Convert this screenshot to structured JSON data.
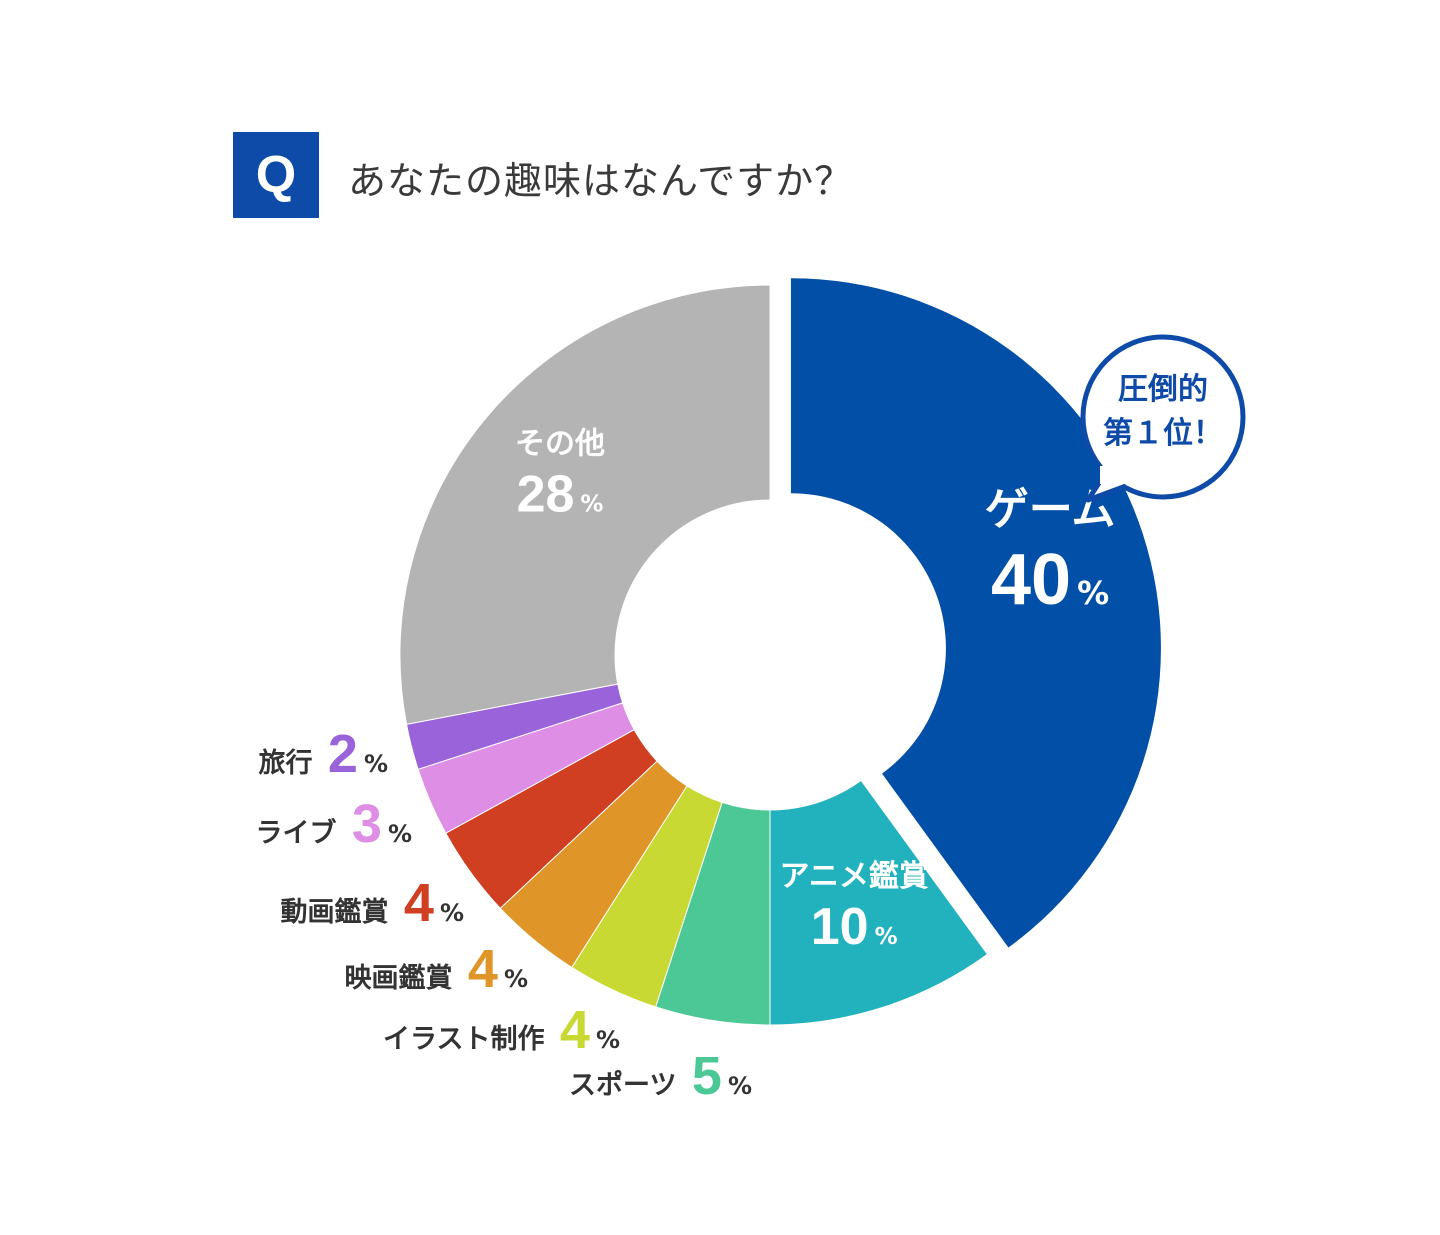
{
  "question": {
    "badge": "Q",
    "text": "あなたの趣味はなんですか？"
  },
  "callout": {
    "line1": "圧倒的",
    "line2": "第１位！",
    "color": "#0e4aa8"
  },
  "chart_data": {
    "type": "pie",
    "donut": true,
    "unit": "%",
    "slices": [
      {
        "label": "ゲーム",
        "value": 40,
        "color": "#024fa8",
        "label_color": "#ffffff",
        "label_position": "inside",
        "exploded": true
      },
      {
        "label": "アニメ鑑賞",
        "value": 10,
        "color": "#22b2bd",
        "label_color": "#ffffff",
        "label_position": "inside"
      },
      {
        "label": "スポーツ",
        "value": 5,
        "color": "#4cc897",
        "label_color": "#4cc897",
        "label_position": "outside"
      },
      {
        "label": "イラスト制作",
        "value": 4,
        "color": "#c9d934",
        "label_color": "#c9d934",
        "label_position": "outside"
      },
      {
        "label": "映画鑑賞",
        "value": 4,
        "color": "#e09528",
        "label_color": "#e09528",
        "label_position": "outside"
      },
      {
        "label": "動画鑑賞",
        "value": 4,
        "color": "#d03f22",
        "label_color": "#d03f22",
        "label_position": "outside"
      },
      {
        "label": "ライブ",
        "value": 3,
        "color": "#df8ee6",
        "label_color": "#df8ee6",
        "label_position": "outside"
      },
      {
        "label": "旅行",
        "value": 2,
        "color": "#9a63da",
        "label_color": "#9a63da",
        "label_position": "outside"
      },
      {
        "label": "その他",
        "value": 28,
        "color": "#b4b4b4",
        "label_color": "#ffffff",
        "label_position": "inside"
      }
    ]
  }
}
